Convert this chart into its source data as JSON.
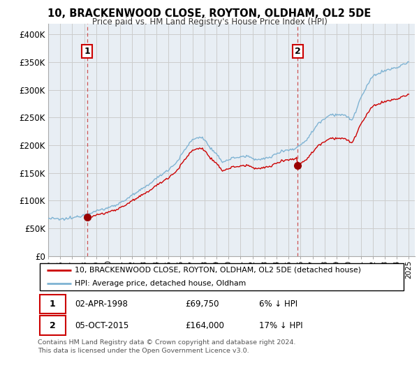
{
  "title": "10, BRACKENWOOD CLOSE, ROYTON, OLDHAM, OL2 5DE",
  "subtitle": "Price paid vs. HM Land Registry's House Price Index (HPI)",
  "legend_line1": "10, BRACKENWOOD CLOSE, ROYTON, OLDHAM, OL2 5DE (detached house)",
  "legend_line2": "HPI: Average price, detached house, Oldham",
  "table_row1": [
    "1",
    "02-APR-1998",
    "£69,750",
    "6% ↓ HPI"
  ],
  "table_row2": [
    "2",
    "05-OCT-2015",
    "£164,000",
    "17% ↓ HPI"
  ],
  "footer": "Contains HM Land Registry data © Crown copyright and database right 2024.\nThis data is licensed under the Open Government Licence v3.0.",
  "sale1_date": 1998.25,
  "sale1_price": 69750,
  "sale2_date": 2015.75,
  "sale2_price": 164000,
  "hpi_color": "#7fb3d3",
  "price_color": "#cc0000",
  "marker_color": "#990000",
  "vline_color": "#cc4444",
  "chart_bg": "#e8eef4",
  "ylim": [
    0,
    420000
  ],
  "xlim_start": 1995.0,
  "xlim_end": 2025.5,
  "yticks": [
    0,
    50000,
    100000,
    150000,
    200000,
    250000,
    300000,
    350000,
    400000
  ],
  "ytick_labels": [
    "£0",
    "£50K",
    "£100K",
    "£150K",
    "£200K",
    "£250K",
    "£300K",
    "£350K",
    "£400K"
  ],
  "xtick_years": [
    1995,
    1996,
    1997,
    1998,
    1999,
    2000,
    2001,
    2002,
    2003,
    2004,
    2005,
    2006,
    2007,
    2008,
    2009,
    2010,
    2011,
    2012,
    2013,
    2014,
    2015,
    2016,
    2017,
    2018,
    2019,
    2020,
    2021,
    2022,
    2023,
    2024,
    2025
  ],
  "background_color": "#ffffff",
  "grid_color": "#cccccc",
  "hpi_waypoints_x": [
    1995.0,
    1996.0,
    1997.0,
    1998.0,
    1999.5,
    2001.0,
    2002.5,
    2004.0,
    2005.5,
    2007.0,
    2007.8,
    2008.5,
    2009.5,
    2010.5,
    2011.5,
    2012.5,
    2013.5,
    2014.5,
    2015.5,
    2016.5,
    2017.5,
    2018.5,
    2019.5,
    2020.3,
    2021.0,
    2022.0,
    2023.0,
    2024.0,
    2025.0
  ],
  "hpi_waypoints_y": [
    68000,
    67000,
    69000,
    74000,
    82000,
    95000,
    115000,
    140000,
    165000,
    210000,
    215000,
    195000,
    170000,
    178000,
    180000,
    172000,
    178000,
    190000,
    192000,
    210000,
    240000,
    255000,
    255000,
    245000,
    285000,
    325000,
    335000,
    340000,
    350000
  ]
}
